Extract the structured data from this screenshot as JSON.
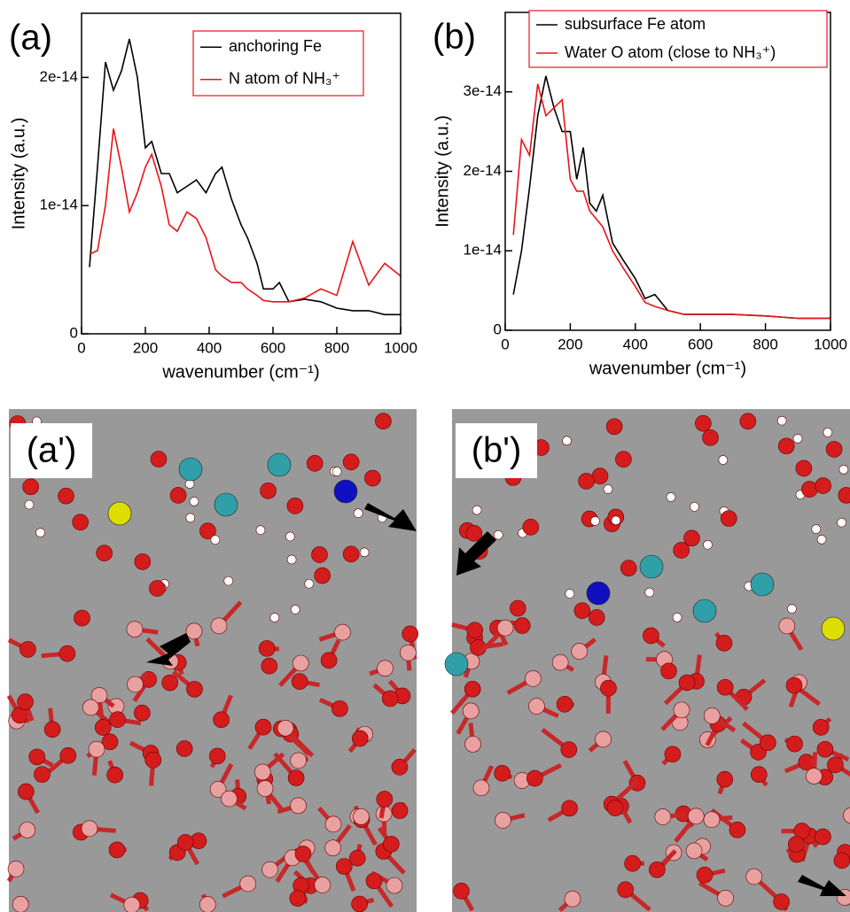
{
  "chart_data": [
    {
      "type": "line",
      "panel_label": "(a)",
      "x_label": "wavenumber (cm⁻¹)",
      "y_label": "Intensity (a.u.)",
      "xlim": [
        0,
        1000
      ],
      "xticks": [
        0,
        200,
        400,
        600,
        800,
        1000
      ],
      "ylim": [
        0,
        2.5e-14
      ],
      "yticks": [
        0,
        1e-14,
        2e-14
      ],
      "x": [
        25,
        50,
        75,
        100,
        125,
        150,
        175,
        200,
        220,
        250,
        275,
        300,
        330,
        360,
        390,
        420,
        440,
        470,
        500,
        520,
        550,
        570,
        600,
        620,
        650,
        700,
        750,
        800,
        850,
        900,
        950,
        1000
      ],
      "series": [
        {
          "name": "anchoring Fe",
          "color": "#000000",
          "values": [
            5.2e-15,
            1.3e-14,
            2.12e-14,
            1.9e-14,
            2.05e-14,
            2.3e-14,
            2e-14,
            1.45e-14,
            1.5e-14,
            1.25e-14,
            1.25e-14,
            1.1e-14,
            1.15e-14,
            1.2e-14,
            1.1e-14,
            1.25e-14,
            1.3e-14,
            1.05e-14,
            8.5e-15,
            7.5e-15,
            5.5e-15,
            3.5e-15,
            3.5e-15,
            4e-15,
            2.5e-15,
            2.7e-15,
            2.5e-15,
            2e-15,
            1.8e-15,
            1.8e-15,
            1.5e-15,
            1.5e-15
          ]
        },
        {
          "name": "N atom of NH₃⁺",
          "color": "#e8141b",
          "values": [
            6.2e-15,
            6.5e-15,
            1e-14,
            1.6e-14,
            1.3e-14,
            9.5e-15,
            1.1e-14,
            1.3e-14,
            1.4e-14,
            1.15e-14,
            8.5e-15,
            8e-15,
            9.5e-15,
            9e-15,
            7.5e-15,
            5e-15,
            4.5e-15,
            4e-15,
            4e-15,
            3.5e-15,
            3e-15,
            2.6e-15,
            2.5e-15,
            2.5e-15,
            2.5e-15,
            2.8e-15,
            3.5e-15,
            3e-15,
            7.2e-15,
            3.8e-15,
            5.5e-15,
            4.5e-15
          ]
        }
      ]
    },
    {
      "type": "line",
      "panel_label": "(b)",
      "x_label": "wavenumber (cm⁻¹)",
      "y_label": "Intensity (a.u.)",
      "xlim": [
        0,
        1000
      ],
      "xticks": [
        0,
        200,
        400,
        600,
        800,
        1000
      ],
      "ylim": [
        0,
        4e-14
      ],
      "yticks": [
        0,
        1e-14,
        2e-14,
        3e-14
      ],
      "x": [
        25,
        50,
        75,
        100,
        125,
        150,
        175,
        200,
        220,
        240,
        260,
        280,
        300,
        330,
        360,
        400,
        430,
        460,
        500,
        550,
        600,
        700,
        800,
        900,
        1000
      ],
      "series": [
        {
          "name": "subsurface Fe atom",
          "color": "#000000",
          "values": [
            4.5e-15,
            1e-14,
            1.8e-14,
            2.7e-14,
            3.2e-14,
            2.8e-14,
            2.5e-14,
            2.5e-14,
            1.9e-14,
            2.3e-14,
            1.6e-14,
            1.5e-14,
            1.7e-14,
            1.1e-14,
            9e-15,
            6.5e-15,
            4e-15,
            4.5e-15,
            2.5e-15,
            2e-15,
            2e-15,
            2e-15,
            1.8e-15,
            1.5e-15,
            1.5e-15
          ]
        },
        {
          "name": "Water  O atom (close to NH₃⁺)",
          "color": "#e8141b",
          "values": [
            1.2e-14,
            2.4e-14,
            2.2e-14,
            3.1e-14,
            2.7e-14,
            2.8e-14,
            2.9e-14,
            1.9e-14,
            1.75e-14,
            1.75e-14,
            1.5e-14,
            1.4e-14,
            1.3e-14,
            1e-14,
            8e-15,
            5.5e-15,
            3.5e-15,
            3e-15,
            2.5e-15,
            2e-15,
            2e-15,
            2e-15,
            1.8e-15,
            1.5e-15,
            1.5e-15
          ]
        }
      ]
    }
  ],
  "panels": [
    {
      "label": "(a')"
    },
    {
      "label": "(b')"
    }
  ]
}
